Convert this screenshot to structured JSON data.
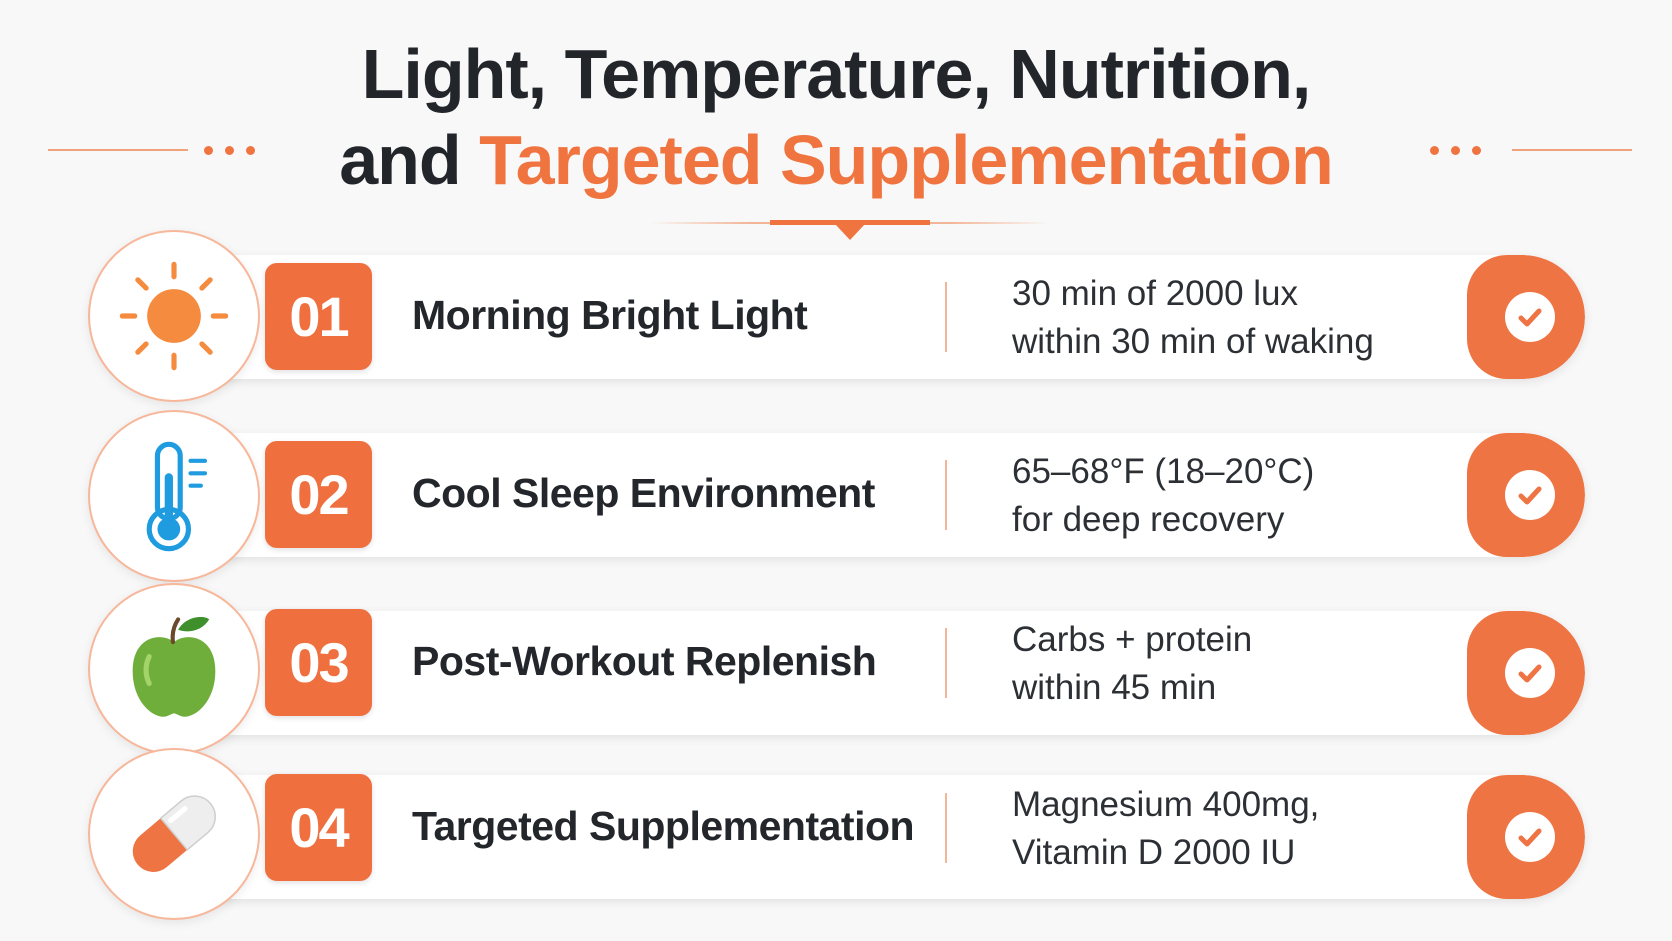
{
  "header": {
    "title_line1": "Light, Temperature, Nutrition,",
    "title_line2_prefix": "and",
    "title_line2_accent": "Targeted Supplementation"
  },
  "colors": {
    "accent": "#f07440",
    "text_dark": "#22262b",
    "card_bg": "#ffffff",
    "page_bg": "#f8f8f8"
  },
  "items": [
    {
      "number": "01",
      "title": "Morning Bright Light",
      "detail_line1": "30 min of 2000 lux",
      "detail_line2": "within 30 min of waking",
      "icon": "sun-icon"
    },
    {
      "number": "02",
      "title": "Cool Sleep Environment",
      "detail_line1": "65–68°F (18–20°C)",
      "detail_line2": "for deep recovery",
      "icon": "thermometer-icon"
    },
    {
      "number": "03",
      "title": "Post-Workout Replenish",
      "detail_line1": "Carbs + protein",
      "detail_line2": "within 45 min",
      "icon": "apple-icon"
    },
    {
      "number": "04",
      "title": "Targeted Supplementation",
      "detail_line1": "Magnesium 400mg,",
      "detail_line2": "Vitamin D 2000 IU",
      "icon": "capsule-icon"
    }
  ]
}
